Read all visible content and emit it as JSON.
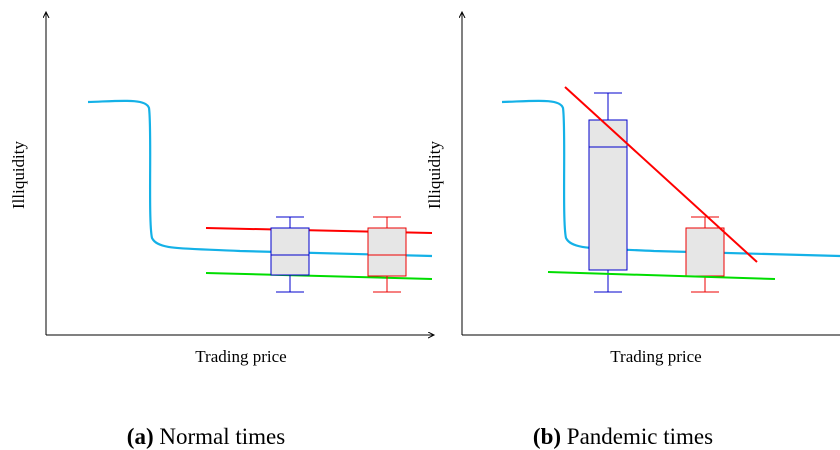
{
  "panels": [
    {
      "y_label": "Illiquidity",
      "x_label": "Trading price",
      "caption_tag": "(a)",
      "caption": "Normal times"
    },
    {
      "y_label": "Illiquidity",
      "x_label": "Trading price",
      "caption_tag": "(b)",
      "caption": "Pandemic times"
    }
  ]
}
